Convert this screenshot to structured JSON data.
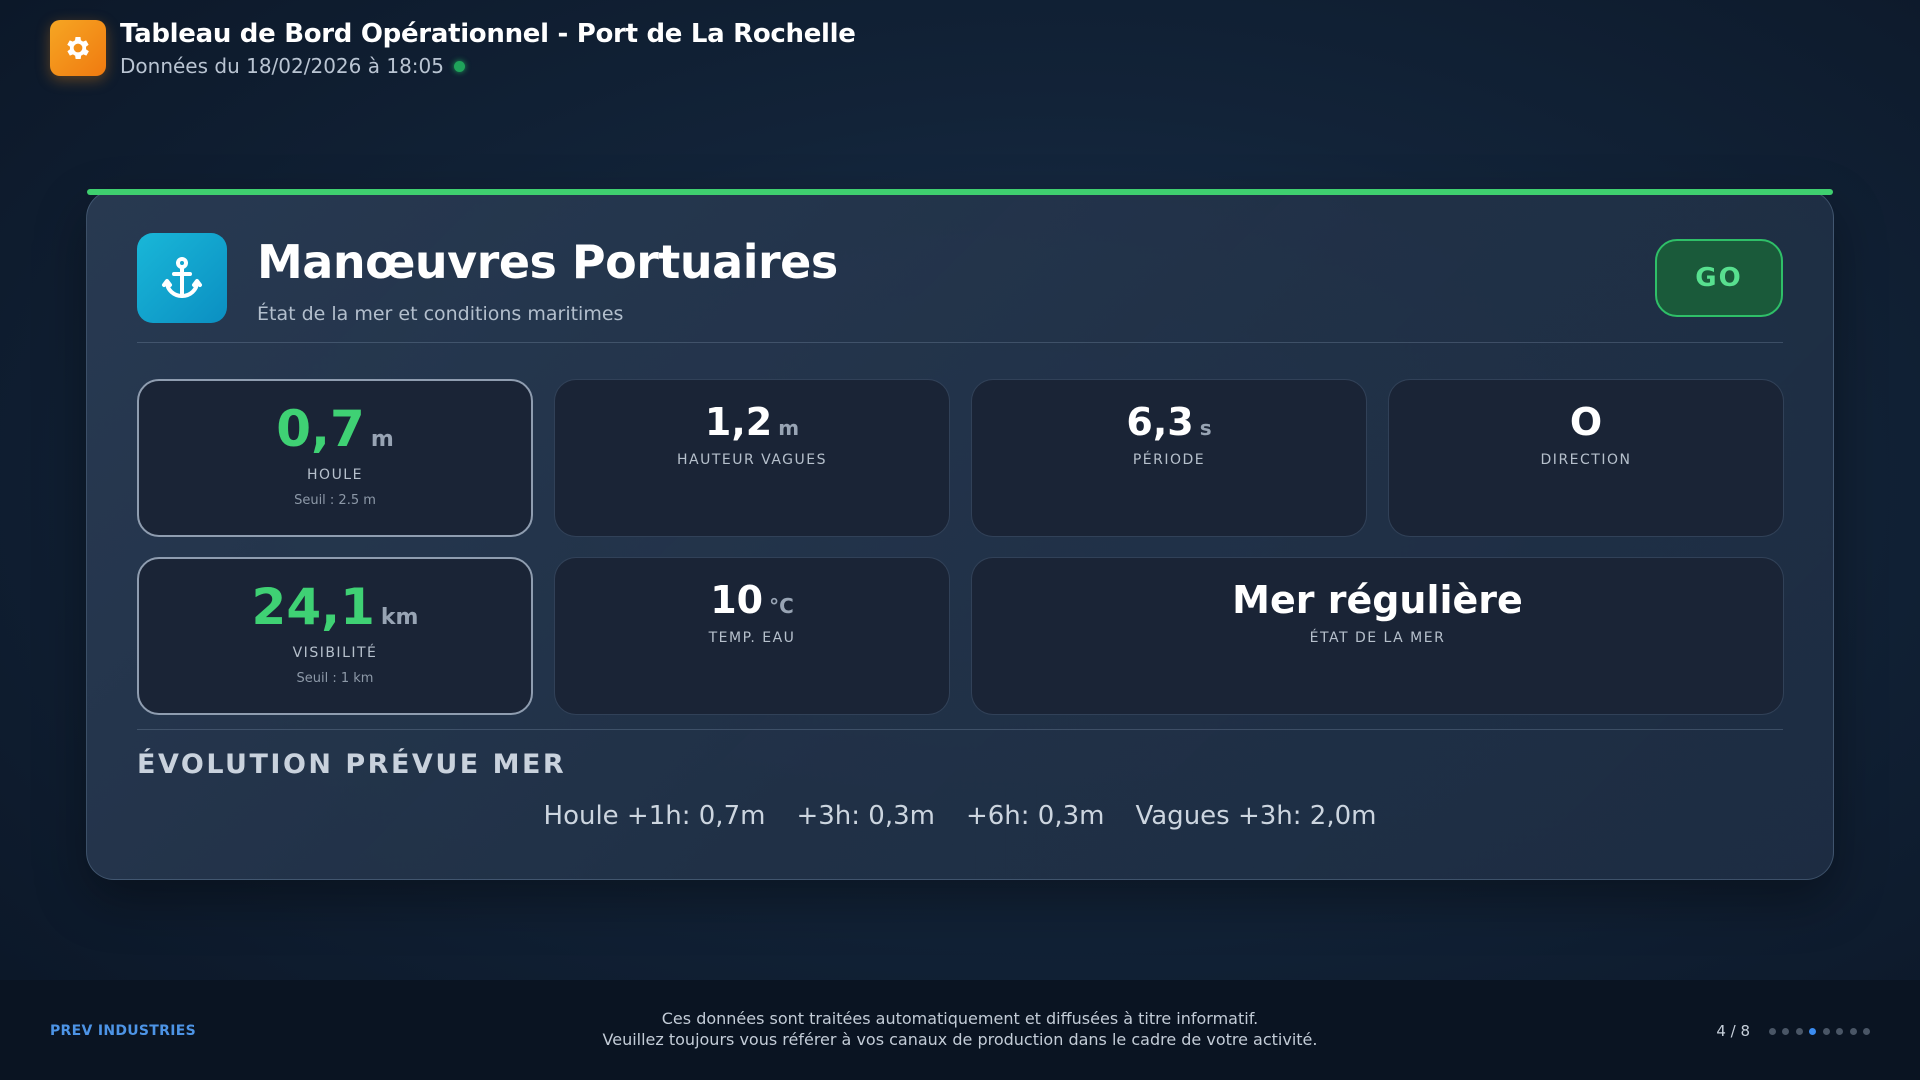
{
  "header": {
    "title": "Tableau de Bord Opérationnel - Port de La Rochelle",
    "subtitle": "Données du 18/02/2026 à 18:05",
    "logo_icon": "gear-icon",
    "status_color": "#1fa35a"
  },
  "card": {
    "icon": "anchor-icon",
    "title": "Manœuvres Portuaires",
    "subtitle": "État de la mer et conditions maritimes",
    "status_button": "GO",
    "accent_color": "#3fcf6f"
  },
  "metrics": {
    "houle": {
      "value": "0,7",
      "unit": "m",
      "label": "HOULE",
      "threshold": "Seuil : 2.5 m"
    },
    "hauteur": {
      "value": "1,2",
      "unit": "m",
      "label": "HAUTEUR VAGUES"
    },
    "periode": {
      "value": "6,3",
      "unit": "s",
      "label": "PÉRIODE"
    },
    "direction": {
      "value": "O",
      "label": "DIRECTION"
    },
    "visibilite": {
      "value": "24,1",
      "unit": "km",
      "label": "VISIBILITÉ",
      "threshold": "Seuil : 1 km"
    },
    "temp": {
      "value": "10",
      "unit": "°C",
      "label": "TEMP. EAU"
    },
    "etat": {
      "value": "Mer régulière",
      "label": "ÉTAT DE LA MER"
    }
  },
  "forecast": {
    "title": "ÉVOLUTION PRÉVUE MER",
    "items": [
      "Houle +1h: 0,7m",
      "+3h: 0,3m",
      "+6h: 0,3m",
      "Vagues +3h: 2,0m"
    ]
  },
  "footer": {
    "brand": "PREV INDUSTRIES",
    "disclaimer_line1": "Ces données sont traitées automatiquement et diffusées à titre informatif.",
    "disclaimer_line2": "Veuillez toujours vous référer à vos canaux de production dans le cadre de votre activité.",
    "page": "4 / 8",
    "page_current": 4,
    "page_total": 8
  }
}
